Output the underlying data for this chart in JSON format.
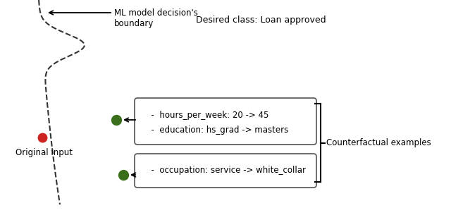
{
  "background_color": "#ffffff",
  "boundary_label": "ML model decision's\nboundary",
  "desired_class_label": "Desired class: Loan approved",
  "original_input_label": "Original input",
  "counterfactual_label": "Counterfactual examples",
  "box1_line1": "  -  hours_per_week: 20 -> 45",
  "box1_line2": "  -  education: hs_grad -> masters",
  "box2_line1": "  -  occupation: service -> white_collar",
  "arrow_color": "#000000",
  "dot_red_color": "#cc2222",
  "dot_green_color": "#3a6e1a",
  "box_edge_color": "#555555",
  "dashed_color": "#333333",
  "font_size": 8.5,
  "label_font_size": 8.5
}
